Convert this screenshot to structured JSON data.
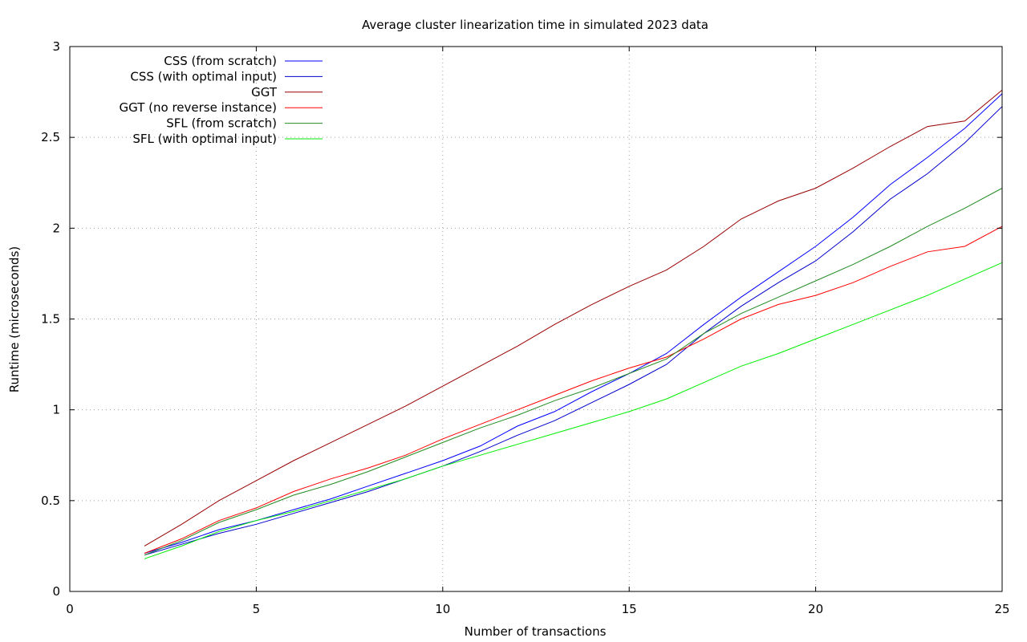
{
  "chart_data": {
    "type": "line",
    "title": "Average cluster linearization time in simulated 2023 data",
    "xlabel": "Number of transactions",
    "ylabel": "Runtime (microseconds)",
    "xlim": [
      0,
      25
    ],
    "ylim": [
      0,
      3
    ],
    "xticks": [
      0,
      5,
      10,
      15,
      20,
      25
    ],
    "xtick_labels": [
      "0",
      "5",
      "10",
      "15",
      "20",
      "25"
    ],
    "yticks": [
      0,
      0.5,
      1,
      1.5,
      2,
      2.5,
      3
    ],
    "ytick_labels": [
      "0",
      "0.5",
      "1",
      "1.5",
      "2",
      "2.5",
      "3"
    ],
    "grid": true,
    "legend_position": "top-left",
    "x": [
      2,
      3,
      4,
      5,
      6,
      7,
      8,
      9,
      10,
      11,
      12,
      13,
      14,
      15,
      16,
      17,
      18,
      19,
      20,
      21,
      22,
      23,
      24,
      25
    ],
    "series": [
      {
        "name": "CSS (from scratch)",
        "color": "#0000ff",
        "values": [
          0.21,
          0.27,
          0.34,
          0.39,
          0.45,
          0.51,
          0.58,
          0.65,
          0.72,
          0.8,
          0.91,
          0.99,
          1.1,
          1.2,
          1.31,
          1.47,
          1.62,
          1.76,
          1.9,
          2.06,
          2.24,
          2.39,
          2.55,
          2.74
        ]
      },
      {
        "name": "CSS (with optimal input)",
        "color": "#0000cc",
        "values": [
          0.2,
          0.26,
          0.32,
          0.37,
          0.43,
          0.49,
          0.55,
          0.62,
          0.69,
          0.77,
          0.86,
          0.94,
          1.04,
          1.14,
          1.25,
          1.42,
          1.57,
          1.7,
          1.82,
          1.98,
          2.16,
          2.3,
          2.47,
          2.67
        ]
      },
      {
        "name": "GGT",
        "color": "#990000",
        "values": [
          0.25,
          0.37,
          0.5,
          0.61,
          0.72,
          0.82,
          0.92,
          1.02,
          1.13,
          1.24,
          1.35,
          1.47,
          1.58,
          1.68,
          1.77,
          1.9,
          2.05,
          2.15,
          2.22,
          2.33,
          2.45,
          2.56,
          2.59,
          2.76
        ]
      },
      {
        "name": "GGT (no reverse instance)",
        "color": "#ff0000",
        "values": [
          0.21,
          0.29,
          0.39,
          0.46,
          0.55,
          0.62,
          0.68,
          0.75,
          0.84,
          0.92,
          1.0,
          1.08,
          1.16,
          1.23,
          1.29,
          1.39,
          1.5,
          1.58,
          1.63,
          1.7,
          1.79,
          1.87,
          1.9,
          2.01
        ]
      },
      {
        "name": "SFL (from scratch)",
        "color": "#228b22",
        "values": [
          0.2,
          0.28,
          0.38,
          0.45,
          0.53,
          0.59,
          0.66,
          0.74,
          0.82,
          0.9,
          0.97,
          1.05,
          1.12,
          1.2,
          1.28,
          1.42,
          1.53,
          1.62,
          1.71,
          1.8,
          1.9,
          2.01,
          2.11,
          2.22
        ]
      },
      {
        "name": "SFL (with optimal input)",
        "color": "#00ee00",
        "values": [
          0.18,
          0.25,
          0.33,
          0.39,
          0.44,
          0.5,
          0.56,
          0.62,
          0.69,
          0.75,
          0.81,
          0.87,
          0.93,
          0.99,
          1.06,
          1.15,
          1.24,
          1.31,
          1.39,
          1.47,
          1.55,
          1.63,
          1.72,
          1.81
        ]
      }
    ]
  }
}
